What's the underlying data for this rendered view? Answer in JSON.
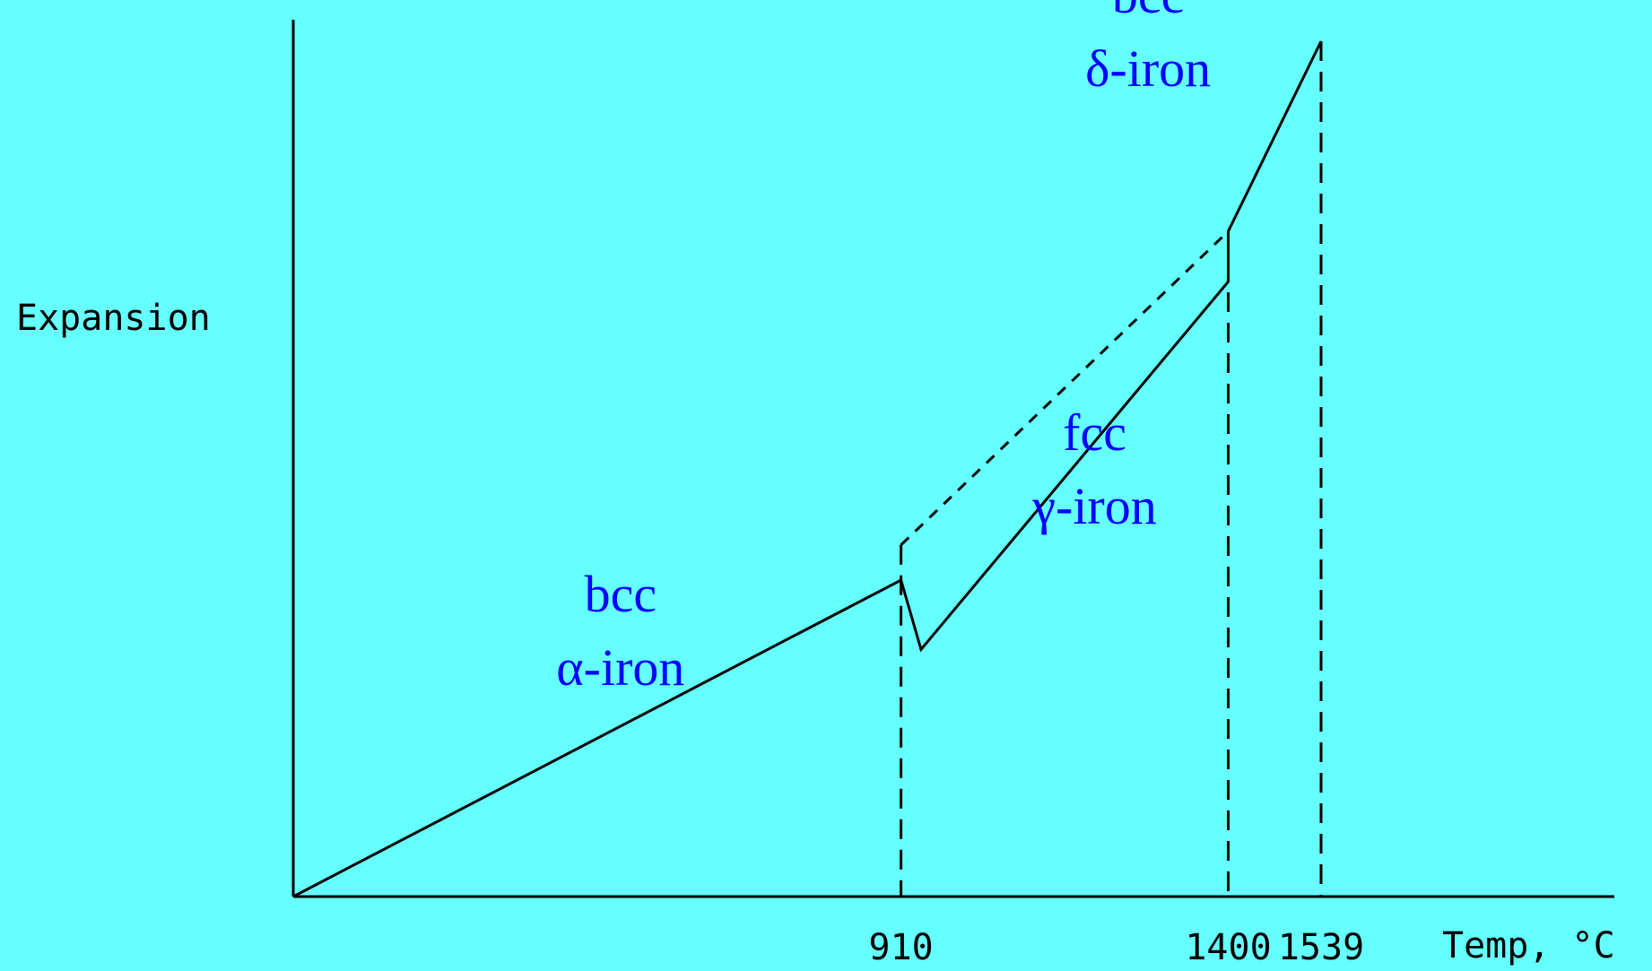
{
  "chart_data": {
    "type": "line",
    "title": "",
    "ylabel": "Expansion",
    "xlabel": "Temp, °C",
    "x_ticks": [
      "910",
      "1400",
      "1539"
    ],
    "xlim": [
      0,
      1539
    ],
    "grid": false,
    "legend": "none",
    "colors": {
      "background": "#66ffff",
      "line": "#000000",
      "phase_label": "#0000ff"
    },
    "series": [
      {
        "x": [
          0,
          910,
          940,
          1400,
          1400,
          1539
        ],
        "y": [
          0,
          0.333,
          0.26,
          0.647,
          0.7,
          0.9
        ]
      }
    ],
    "extrapolation": {
      "style": "dashed",
      "x": [
        910,
        1400
      ],
      "y": [
        0.37,
        0.7
      ]
    },
    "reference_lines": [
      {
        "x": 910,
        "y_top": 0.37,
        "style": "dashed"
      },
      {
        "x": 1400,
        "y_top": 0.7,
        "style": "dashed"
      },
      {
        "x": 1539,
        "y_top": 0.9,
        "style": "dashed"
      }
    ],
    "annotations": [
      {
        "lines": [
          "bcc",
          "α-iron"
        ],
        "x": 490,
        "y": 0.3
      },
      {
        "lines": [
          "fcc",
          "γ-iron"
        ],
        "x": 1200,
        "y": 0.47
      },
      {
        "lines": [
          "bcc",
          "δ-iron"
        ],
        "x": 1280,
        "y": 0.93
      }
    ]
  }
}
